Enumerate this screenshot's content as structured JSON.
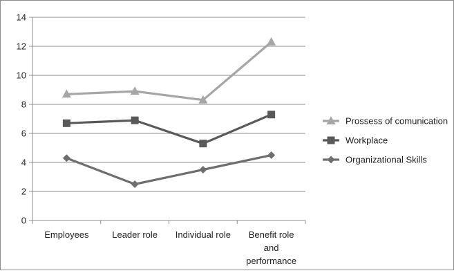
{
  "chart_data": {
    "type": "line",
    "title": "",
    "xlabel": "",
    "ylabel": "",
    "ylim": [
      0,
      14
    ],
    "yticks": [
      0,
      2,
      4,
      6,
      8,
      10,
      12,
      14
    ],
    "grid": true,
    "legend_position": "right",
    "categories": [
      [
        "Employees"
      ],
      [
        "Leader role"
      ],
      [
        "Individual role"
      ],
      [
        "Benefit role",
        "and",
        "performance"
      ]
    ],
    "series": [
      {
        "name": "Prossess of comunication",
        "values": [
          8.7,
          8.9,
          8.3,
          12.3
        ],
        "color": "#a6a6a6",
        "marker": "triangle"
      },
      {
        "name": "Workplace",
        "values": [
          6.7,
          6.9,
          5.3,
          7.3
        ],
        "color": "#595959",
        "marker": "square"
      },
      {
        "name": "Organizational Skills",
        "values": [
          4.3,
          2.5,
          3.5,
          4.5
        ],
        "color": "#6e6e6e",
        "marker": "diamond"
      }
    ]
  }
}
